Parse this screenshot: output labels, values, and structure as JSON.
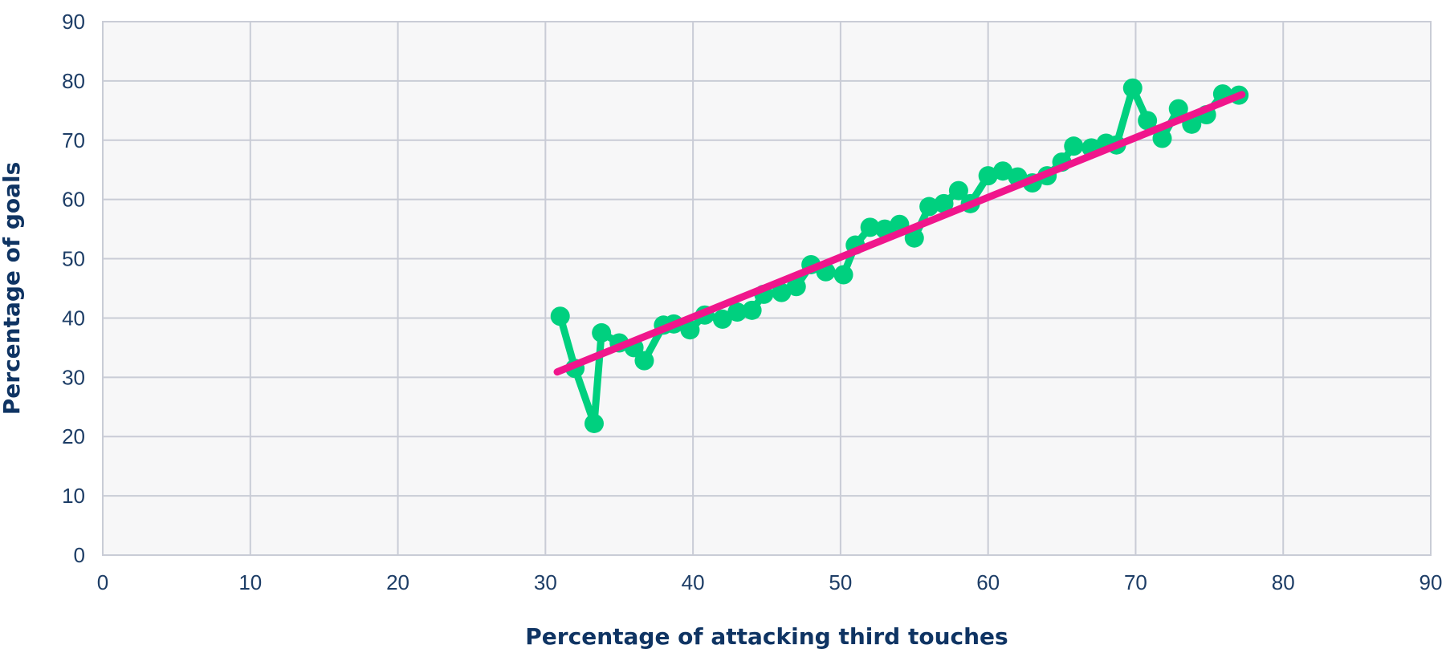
{
  "chart_data": {
    "type": "scatter",
    "title": "",
    "xlabel": "Percentage of attacking third touches",
    "ylabel": "Percentage of goals",
    "xlim": [
      0,
      90
    ],
    "ylim": [
      0,
      90
    ],
    "x_ticks": [
      0,
      10,
      20,
      30,
      40,
      50,
      60,
      70,
      80,
      90
    ],
    "y_ticks": [
      0,
      10,
      20,
      30,
      40,
      50,
      60,
      70,
      80,
      90
    ],
    "grid": true,
    "colors": {
      "background": "#f7f7f8",
      "grid": "#c9ccd6",
      "series": "#00d07f",
      "trend": "#f0168c",
      "text": "#1d3d66"
    },
    "series": [
      {
        "style": "line-markers",
        "x": [
          31,
          32,
          33.3,
          33.8,
          35,
          36,
          36.7,
          38,
          38.7,
          39.8,
          40.8,
          42,
          43,
          44,
          44.8,
          46,
          47,
          48,
          49,
          50.2,
          51,
          52,
          53,
          54,
          55,
          56,
          57,
          58,
          58.8,
          60,
          61,
          62,
          63,
          64,
          65,
          65.8,
          67,
          68,
          68.7,
          69.8,
          70.8,
          71.8,
          72.9,
          73.8,
          74.8,
          75.9,
          77
        ],
        "y": [
          40.3,
          31.5,
          22.2,
          37.5,
          35.8,
          35,
          32.8,
          38.8,
          39,
          38,
          40.5,
          39.8,
          41,
          41.3,
          44,
          44.3,
          45.3,
          49,
          47.8,
          47.3,
          52.3,
          55.3,
          55,
          55.8,
          53.5,
          58.8,
          59.3,
          61.5,
          59.3,
          64,
          64.8,
          63.8,
          62.8,
          64,
          66.3,
          69,
          68.7,
          69.5,
          69.2,
          78.8,
          73.3,
          70.3,
          75.3,
          72.7,
          74.3,
          77.8,
          77.6
        ]
      },
      {
        "style": "trend-line",
        "x": [
          30.8,
          77.2
        ],
        "y": [
          30.9,
          77.7
        ]
      }
    ]
  }
}
